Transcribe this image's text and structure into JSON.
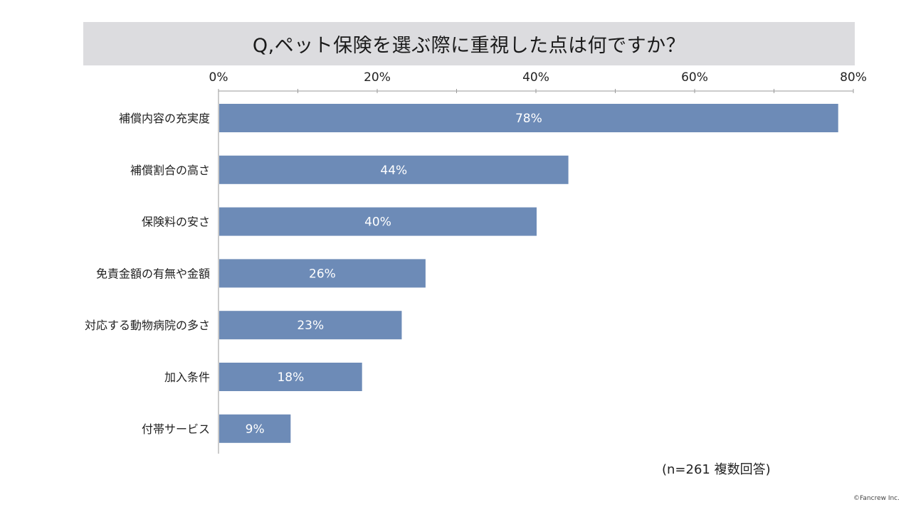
{
  "chart_data": {
    "type": "bar",
    "orientation": "horizontal",
    "title": "Q,ペット保険を選ぶ際に重視した点は何ですか？",
    "categories": [
      "補償内容の充実度",
      "補償割合の高さ",
      "保険料の安さ",
      "免責金額の有無や金額",
      "対応する動物病院の多さ",
      "加入条件",
      "付帯サービス"
    ],
    "values": [
      78,
      44,
      40,
      26,
      23,
      18,
      9
    ],
    "data_labels": [
      "78%",
      "44%",
      "40%",
      "26%",
      "23%",
      "18%",
      "9%"
    ],
    "value_unit": "%",
    "xlim": [
      0,
      80
    ],
    "x_ticks": [
      0,
      20,
      40,
      60,
      80
    ],
    "x_tick_labels": [
      "0%",
      "20%",
      "40%",
      "60%",
      "80%"
    ],
    "x_axis_position": "top",
    "grid": false,
    "bar_color": "#6d8bb7"
  },
  "note": "(n=261 複数回答)",
  "copyright": "©Fancrew Inc."
}
